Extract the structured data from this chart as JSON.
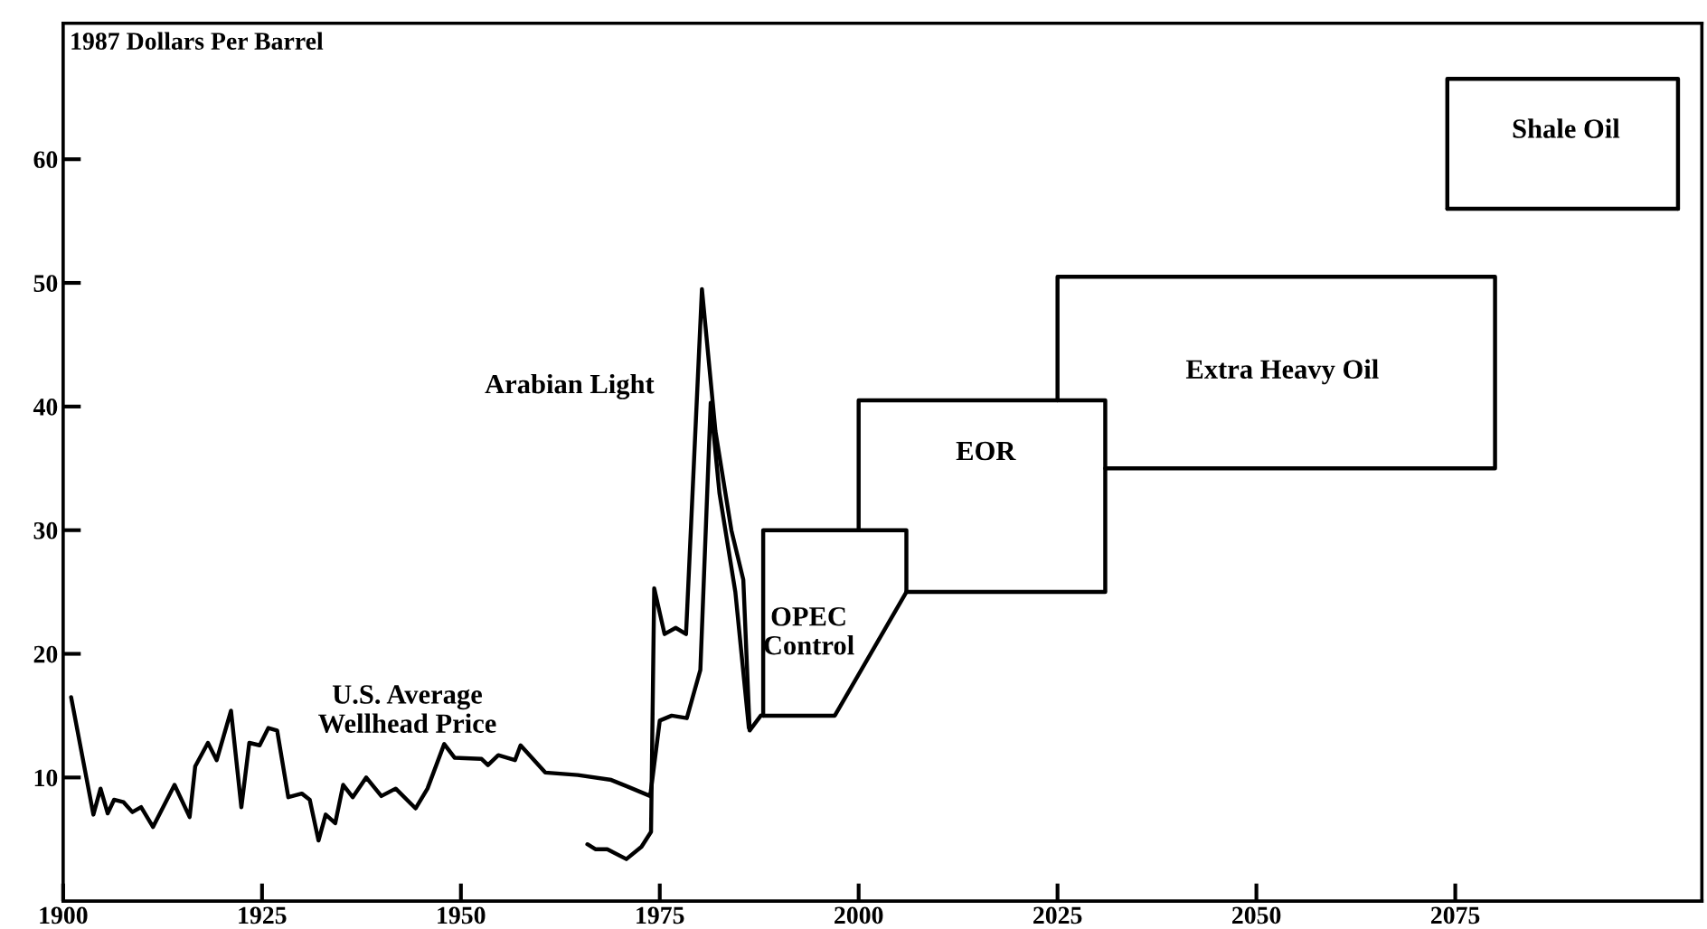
{
  "chart_data": {
    "type": "line",
    "ylabel": "1987 Dollars Per Barrel",
    "xlim": [
      1900,
      2106
    ],
    "ylim": [
      0,
      71
    ],
    "xticks": [
      1900,
      1925,
      1950,
      1975,
      2000,
      2025,
      2050,
      2075
    ],
    "yticks": [
      10,
      20,
      30,
      40,
      50,
      60
    ],
    "grid": false,
    "legend": false,
    "marker": "none",
    "line_style": "solid",
    "series": [
      {
        "name": "U.S. Average\nWellhead Price",
        "color": "#000000",
        "x": [
          1901,
          1903.8,
          1904.7,
          1905.6,
          1906.4,
          1907.6,
          1908.7,
          1909.8,
          1911.3,
          1914,
          1915.9,
          1916.6,
          1918.2,
          1919.3,
          1921.1,
          1922.4,
          1923.4,
          1924.7,
          1925.8,
          1926.9,
          1928.3,
          1930,
          1931,
          1932.1,
          1933,
          1934.2,
          1935.2,
          1936.4,
          1938.1,
          1940,
          1941.8,
          1944.3,
          1945.8,
          1947.9,
          1949.2,
          1952.6,
          1953.4,
          1954.7,
          1956.8,
          1957.5,
          1960.6,
          1964.7,
          1968.9,
          1970.8,
          1973.8,
          1975,
          1976.5,
          1978.4,
          1980.1,
          1981.4,
          1982.5,
          1984.5,
          1986.2
        ],
        "values": [
          16.5,
          7.0,
          9.1,
          7.1,
          8.2,
          8.0,
          7.2,
          7.6,
          6.0,
          9.4,
          6.8,
          10.9,
          12.8,
          11.4,
          15.4,
          7.6,
          12.8,
          12.6,
          14.0,
          13.8,
          8.4,
          8.7,
          8.2,
          4.9,
          7.0,
          6.3,
          9.4,
          8.4,
          10.0,
          8.5,
          9.1,
          7.5,
          9.1,
          12.7,
          11.6,
          11.5,
          11.0,
          11.8,
          11.4,
          12.6,
          10.4,
          10.2,
          9.8,
          9.3,
          8.5,
          14.6,
          15.0,
          14.8,
          18.7,
          40.3,
          33,
          25,
          14
        ]
      },
      {
        "name": "Arabian Light",
        "color": "#000000",
        "x": [
          1965.9,
          1966.9,
          1968.4,
          1970.8,
          1972.7,
          1973.9,
          1974.3,
          1975.6,
          1977,
          1978.3,
          1980.3,
          1982,
          1984,
          1985.5,
          1986.3,
          1987.7
        ],
        "values": [
          4.6,
          4.2,
          4.2,
          3.4,
          4.4,
          5.6,
          25.3,
          21.6,
          22.1,
          21.6,
          49.5,
          38,
          30,
          26,
          13.8,
          15
        ]
      },
      {
        "name": "OPEC\nControl",
        "color": "#000000",
        "x": [
          1988,
          1988,
          2006,
          2006
        ],
        "values": [
          15,
          30,
          30,
          25
        ]
      },
      {
        "color": "#000000",
        "x": [
          1988,
          1997,
          2006
        ],
        "values": [
          15,
          15,
          25
        ]
      },
      {
        "name": "EOR",
        "color": "#000000",
        "x": [
          2000,
          2000,
          2031,
          2031,
          2006
        ],
        "values": [
          30,
          40.5,
          40.5,
          25,
          25
        ]
      },
      {
        "name": "Extra Heavy Oil",
        "color": "#000000",
        "x": [
          2025,
          2025,
          2080,
          2080,
          2031
        ],
        "values": [
          40.5,
          50.5,
          50.5,
          35,
          35
        ]
      },
      {
        "name": "Shale Oil",
        "color": "#000000",
        "x": [
          2074,
          2074,
          2103,
          2103
        ],
        "values": [
          56,
          66.5,
          66.5,
          56
        ]
      },
      {
        "color": "#000000",
        "x": [
          2074,
          2103
        ],
        "values": [
          56,
          56
        ]
      }
    ]
  }
}
